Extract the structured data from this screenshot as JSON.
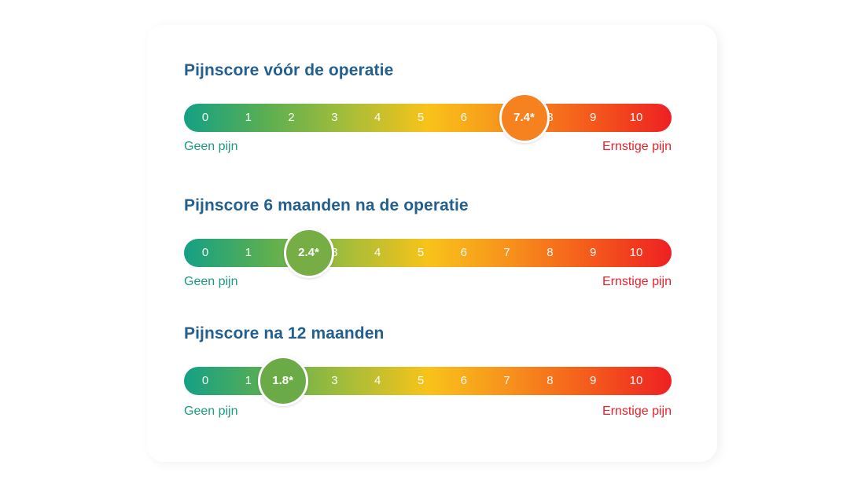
{
  "chart_data": [
    {
      "type": "gauge",
      "title": "Pijnscore vóór de operatie",
      "scale": [
        0,
        1,
        2,
        3,
        4,
        5,
        6,
        7,
        8,
        9,
        10
      ],
      "value": 7.4,
      "value_label": "7.4*",
      "min_label": "Geen pijn",
      "max_label": "Ernstige pijn",
      "marker_color": "#f5821f"
    },
    {
      "type": "gauge",
      "title": "Pijnscore 6 maanden na de operatie",
      "scale": [
        0,
        1,
        2,
        3,
        4,
        5,
        6,
        7,
        8,
        9,
        10
      ],
      "value": 2.4,
      "value_label": "2.4*",
      "min_label": "Geen pijn",
      "max_label": "Ernstige pijn",
      "marker_color": "#76ae45"
    },
    {
      "type": "gauge",
      "title": "Pijnscore na 12 maanden",
      "scale": [
        0,
        1,
        2,
        3,
        4,
        5,
        6,
        7,
        8,
        9,
        10
      ],
      "value": 1.8,
      "value_label": "1.8*",
      "min_label": "Geen pijn",
      "max_label": "Ernstige pijn",
      "marker_color": "#6aaa47"
    }
  ],
  "colors": {
    "gradient": [
      "#14a085",
      "#5aae52",
      "#a5bd3a",
      "#f8c31a",
      "#f7911c",
      "#f45a1b",
      "#ee2023"
    ],
    "title": "#23608f",
    "min_label": "#1b9a82",
    "max_label": "#e8212b"
  }
}
